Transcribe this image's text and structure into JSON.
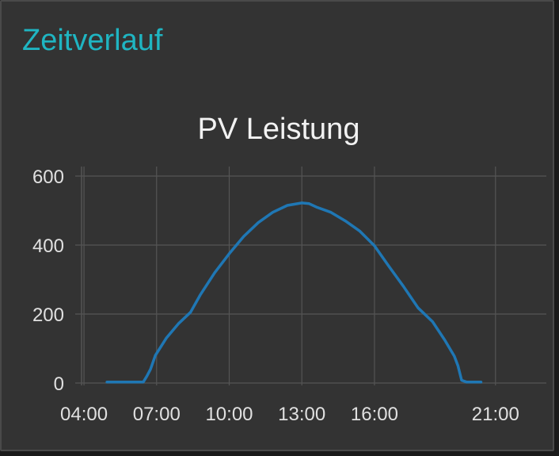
{
  "card": {
    "title": "Zeitverlauf"
  },
  "colors": {
    "title_accent": "#1fb5c2",
    "background": "#333333",
    "series_line": "#1f77b4",
    "grid": "#555555"
  },
  "chart_data": {
    "type": "line",
    "title": "PV Leistung",
    "xlabel": "",
    "ylabel": "",
    "x_unit": "hours",
    "xlim": [
      3.9,
      23.1
    ],
    "ylim": [
      0,
      600
    ],
    "x_ticks": [
      {
        "value": 4,
        "label": "04:00"
      },
      {
        "value": 7,
        "label": "07:00"
      },
      {
        "value": 10,
        "label": "10:00"
      },
      {
        "value": 13,
        "label": "13:00"
      },
      {
        "value": 16,
        "label": "16:00"
      },
      {
        "value": 21,
        "label": "21:00"
      }
    ],
    "y_ticks": [
      {
        "value": 0,
        "label": "0"
      },
      {
        "value": 200,
        "label": "200"
      },
      {
        "value": 400,
        "label": "400"
      },
      {
        "value": 600,
        "label": "600"
      }
    ],
    "grid": true,
    "series": [
      {
        "x": [
          4.95,
          6.45,
          6.6,
          6.75,
          6.95,
          7.4,
          7.9,
          8.4,
          8.8,
          9.4,
          10.0,
          10.6,
          11.2,
          11.8,
          12.4,
          13.0,
          13.3,
          13.6,
          14.2,
          14.8,
          15.4,
          16.0,
          16.6,
          17.2,
          17.8,
          18.4,
          18.9,
          19.3,
          19.45,
          19.6,
          19.8,
          20.0,
          20.4
        ],
        "y": [
          3,
          3,
          20,
          40,
          80,
          130,
          172,
          205,
          255,
          320,
          375,
          425,
          465,
          495,
          515,
          522,
          520,
          510,
          495,
          470,
          440,
          398,
          338,
          280,
          218,
          178,
          125,
          78,
          50,
          8,
          3,
          3,
          3
        ]
      }
    ]
  }
}
